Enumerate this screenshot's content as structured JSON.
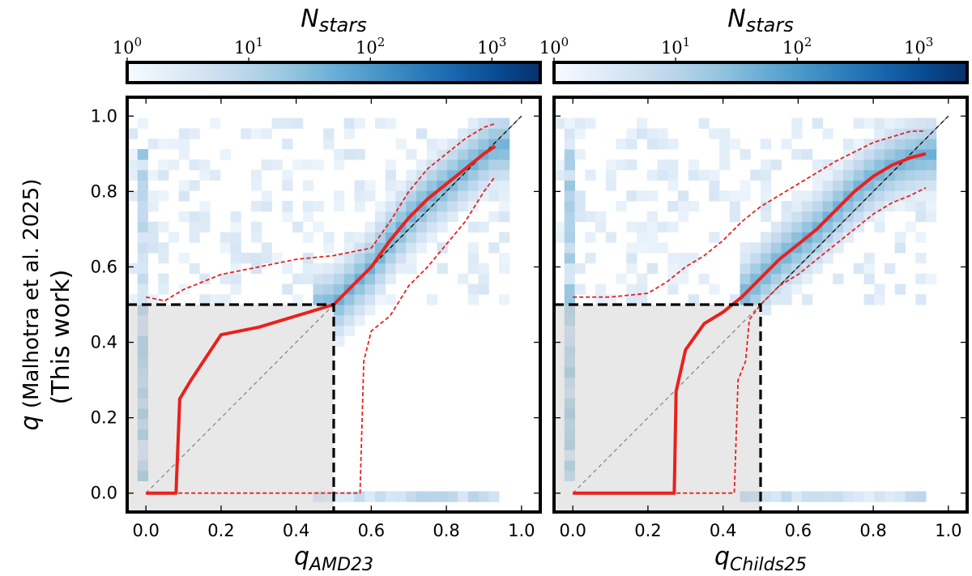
{
  "chart_data": [
    {
      "type": "heatmap",
      "panel": "left",
      "xlabel_main": "q",
      "xlabel_sub": "AMD23",
      "ylabel_main": "q",
      "ylabel_rest": " (Malhotra et al. 2025)",
      "ylabel_line2": "(This work)",
      "xlim": [
        -0.05,
        1.05
      ],
      "ylim": [
        -0.05,
        1.05
      ],
      "x_ticks": [
        "0.0",
        "0.2",
        "0.4",
        "0.6",
        "0.8",
        "1.0"
      ],
      "y_ticks": [
        "0.0",
        "0.2",
        "0.4",
        "0.6",
        "0.8",
        "1.0"
      ],
      "x_tick_values": [
        0,
        0.2,
        0.4,
        0.6,
        0.8,
        1.0
      ],
      "y_tick_values": [
        0,
        0.2,
        0.4,
        0.6,
        0.8,
        1.0
      ],
      "colorbar": {
        "title_main": "N",
        "title_sub": "stars",
        "scale": "log",
        "range": [
          1,
          2500
        ],
        "ticks": [
          {
            "base": "10",
            "exp": "0",
            "value": 1
          },
          {
            "base": "10",
            "exp": "1",
            "value": 10
          },
          {
            "base": "10",
            "exp": "2",
            "value": 100
          },
          {
            "base": "10",
            "exp": "3",
            "value": 1000
          }
        ],
        "colormap": "Blues"
      },
      "shaded_region": {
        "x": [
          -0.05,
          0.5
        ],
        "y": [
          -0.05,
          0.5
        ]
      },
      "threshold": 0.5,
      "median": {
        "x": [
          0.0,
          0.08,
          0.09,
          0.12,
          0.2,
          0.3,
          0.4,
          0.5,
          0.55,
          0.6,
          0.65,
          0.7,
          0.75,
          0.8,
          0.85,
          0.9,
          0.93
        ],
        "y": [
          0.0,
          0.0,
          0.25,
          0.3,
          0.42,
          0.44,
          0.47,
          0.5,
          0.55,
          0.6,
          0.67,
          0.73,
          0.78,
          0.82,
          0.86,
          0.9,
          0.92
        ]
      },
      "upper_bound": {
        "x": [
          0.0,
          0.05,
          0.1,
          0.2,
          0.3,
          0.4,
          0.5,
          0.55,
          0.6,
          0.65,
          0.7,
          0.75,
          0.8,
          0.85,
          0.9,
          0.93
        ],
        "y": [
          0.52,
          0.51,
          0.54,
          0.58,
          0.6,
          0.62,
          0.63,
          0.64,
          0.65,
          0.72,
          0.8,
          0.86,
          0.9,
          0.94,
          0.97,
          0.98
        ]
      },
      "lower_bound": {
        "x": [
          0.0,
          0.45,
          0.5,
          0.57,
          0.58,
          0.6,
          0.65,
          0.7,
          0.75,
          0.8,
          0.85,
          0.9,
          0.93
        ],
        "y": [
          0.0,
          0.0,
          0.0,
          0.0,
          0.35,
          0.43,
          0.47,
          0.55,
          0.6,
          0.66,
          0.72,
          0.8,
          0.84
        ]
      }
    },
    {
      "type": "heatmap",
      "panel": "right",
      "xlabel_main": "q",
      "xlabel_sub": "Childs25",
      "xlim": [
        -0.05,
        1.05
      ],
      "ylim": [
        -0.05,
        1.05
      ],
      "x_ticks": [
        "0.0",
        "0.2",
        "0.4",
        "0.6",
        "0.8",
        "1.0"
      ],
      "x_tick_values": [
        0,
        0.2,
        0.4,
        0.6,
        0.8,
        1.0
      ],
      "colorbar": {
        "title_main": "N",
        "title_sub": "stars",
        "scale": "log",
        "range": [
          1,
          2500
        ],
        "ticks": [
          {
            "base": "10",
            "exp": "0",
            "value": 1
          },
          {
            "base": "10",
            "exp": "1",
            "value": 10
          },
          {
            "base": "10",
            "exp": "2",
            "value": 100
          },
          {
            "base": "10",
            "exp": "3",
            "value": 1000
          }
        ],
        "colormap": "Blues"
      },
      "shaded_region": {
        "x": [
          -0.05,
          0.5
        ],
        "y": [
          -0.05,
          0.5
        ]
      },
      "threshold": 0.5,
      "median": {
        "x": [
          0.0,
          0.27,
          0.275,
          0.3,
          0.35,
          0.4,
          0.45,
          0.5,
          0.55,
          0.6,
          0.65,
          0.7,
          0.75,
          0.8,
          0.85,
          0.9,
          0.94
        ],
        "y": [
          0.0,
          0.0,
          0.27,
          0.38,
          0.45,
          0.48,
          0.52,
          0.57,
          0.62,
          0.66,
          0.7,
          0.75,
          0.8,
          0.84,
          0.87,
          0.89,
          0.9
        ]
      },
      "upper_bound": {
        "x": [
          0.0,
          0.1,
          0.2,
          0.25,
          0.3,
          0.35,
          0.4,
          0.45,
          0.5,
          0.6,
          0.7,
          0.8,
          0.9,
          0.94
        ],
        "y": [
          0.52,
          0.52,
          0.53,
          0.56,
          0.6,
          0.63,
          0.67,
          0.72,
          0.76,
          0.82,
          0.88,
          0.93,
          0.96,
          0.96
        ]
      },
      "lower_bound": {
        "x": [
          0.0,
          0.43,
          0.44,
          0.46,
          0.47,
          0.5,
          0.55,
          0.6,
          0.65,
          0.7,
          0.75,
          0.8,
          0.85,
          0.9,
          0.94
        ],
        "y": [
          0.0,
          0.0,
          0.3,
          0.35,
          0.46,
          0.5,
          0.55,
          0.58,
          0.62,
          0.66,
          0.7,
          0.74,
          0.77,
          0.79,
          0.81
        ]
      }
    }
  ]
}
